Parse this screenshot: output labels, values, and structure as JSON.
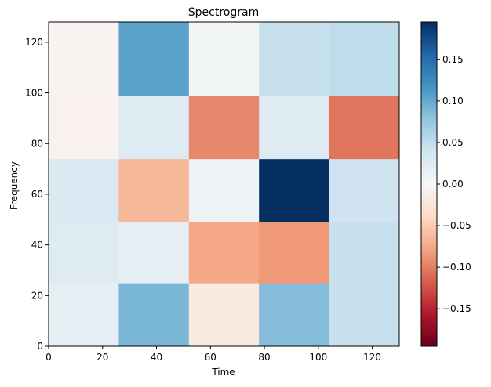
{
  "chart_data": {
    "type": "heatmap",
    "title": "Spectrogram",
    "xlabel": "Time",
    "ylabel": "Frequency",
    "xlim": [
      0,
      130
    ],
    "ylim": [
      0,
      128
    ],
    "x_ticks": [
      0,
      20,
      40,
      60,
      80,
      100,
      120
    ],
    "y_ticks": [
      0,
      20,
      40,
      60,
      80,
      100,
      120
    ],
    "colormap": "RdBu",
    "color_range": [
      -0.195,
      0.195
    ],
    "colorbar_ticks": [
      0.15,
      0.1,
      0.05,
      0.0,
      -0.05,
      -0.1,
      -0.15
    ],
    "colorbar_tick_labels": [
      "0.15",
      "0.10",
      "0.05",
      "0.00",
      "−0.05",
      "−0.10",
      "−0.15"
    ],
    "x_block_edges": [
      0,
      26,
      52,
      78,
      104,
      130
    ],
    "y_block_edges": [
      0,
      25,
      49,
      74,
      99,
      128
    ],
    "blocks_bottom_to_top": [
      [
        0.02,
        0.09,
        -0.02,
        0.085,
        0.045
      ],
      [
        0.025,
        0.02,
        -0.075,
        -0.085,
        0.045
      ],
      [
        0.03,
        -0.065,
        0.008,
        0.195,
        0.04
      ],
      [
        -0.008,
        0.025,
        -0.095,
        0.025,
        -0.105
      ],
      [
        -0.005,
        0.105,
        0.005,
        0.045,
        0.05
      ]
    ]
  }
}
